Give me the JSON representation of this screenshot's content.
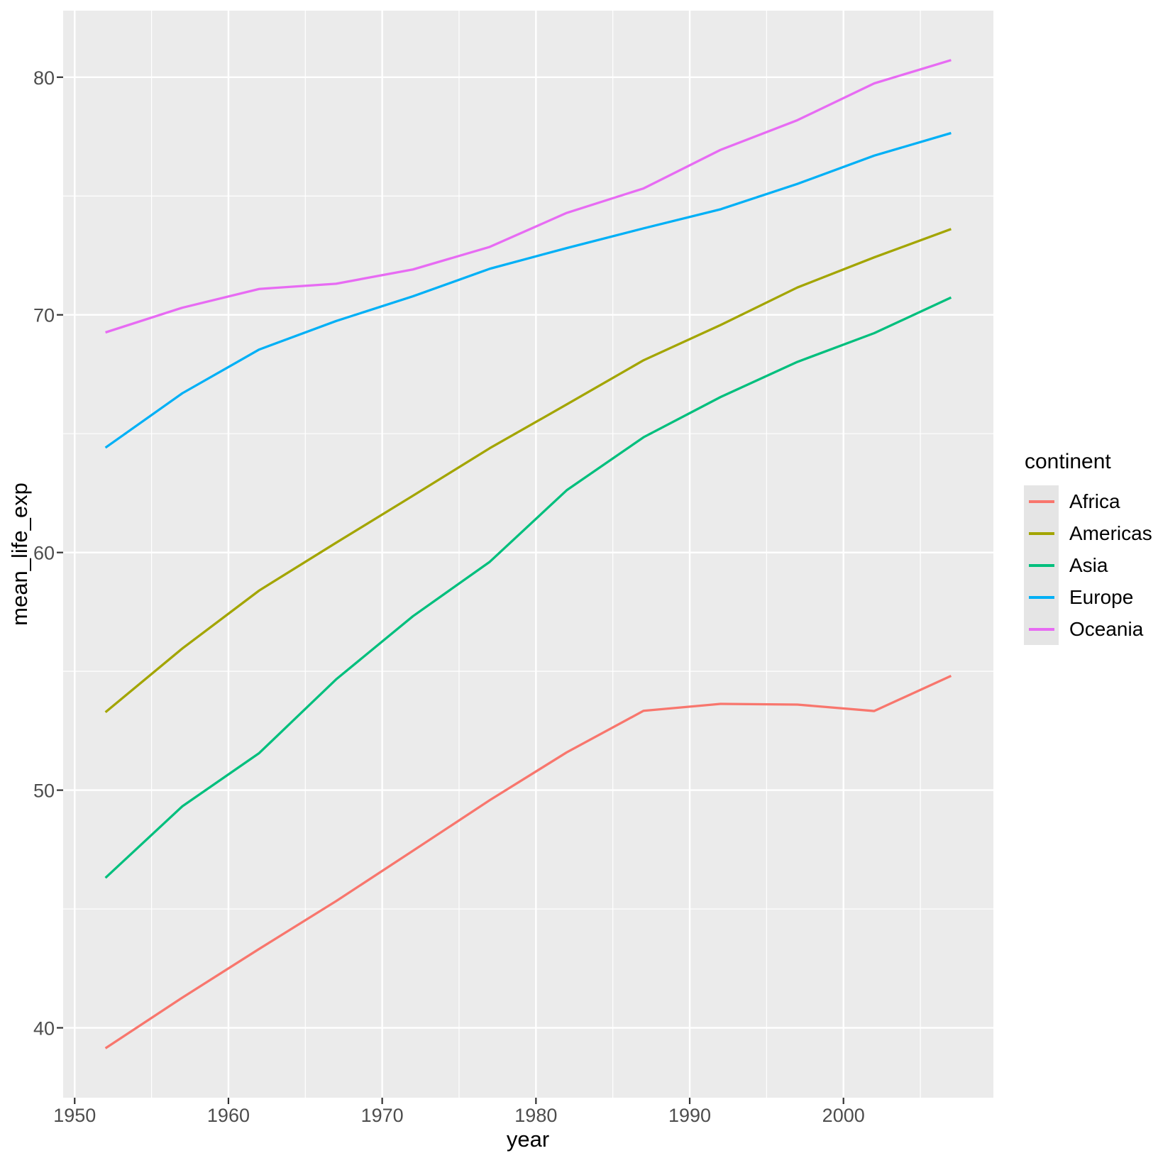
{
  "chart_data": {
    "type": "line",
    "title": "",
    "xlabel": "year",
    "ylabel": "mean_life_exp",
    "legend": {
      "title": "continent",
      "position": "right"
    },
    "x": [
      1952,
      1957,
      1962,
      1967,
      1972,
      1977,
      1982,
      1987,
      1992,
      1997,
      2002,
      2007
    ],
    "series": [
      {
        "name": "Africa",
        "color": "#F8766D",
        "values": [
          39.14,
          41.27,
          43.32,
          45.33,
          47.45,
          49.58,
          51.59,
          53.34,
          53.63,
          53.6,
          53.33,
          54.81
        ]
      },
      {
        "name": "Americas",
        "color": "#A3A500",
        "values": [
          53.28,
          55.96,
          58.4,
          60.41,
          62.39,
          64.39,
          66.23,
          68.09,
          69.57,
          71.15,
          72.42,
          73.61
        ]
      },
      {
        "name": "Asia",
        "color": "#00BF7D",
        "values": [
          46.31,
          49.32,
          51.56,
          54.66,
          57.32,
          59.61,
          62.62,
          64.85,
          66.54,
          68.02,
          69.23,
          70.73
        ]
      },
      {
        "name": "Europe",
        "color": "#00B0F6",
        "values": [
          64.41,
          66.7,
          68.54,
          69.74,
          70.78,
          71.94,
          72.81,
          73.64,
          74.44,
          75.51,
          76.7,
          77.65
        ]
      },
      {
        "name": "Oceania",
        "color": "#E76BF3",
        "values": [
          69.26,
          70.3,
          71.09,
          71.31,
          71.91,
          72.86,
          74.29,
          75.32,
          76.94,
          78.19,
          79.74,
          80.72
        ]
      }
    ],
    "xlim": [
      1949.25,
      2009.75
    ],
    "ylim": [
      37.06,
      82.8
    ],
    "x_ticks": [
      1950,
      1960,
      1970,
      1980,
      1990,
      2000
    ],
    "y_ticks": [
      40,
      50,
      60,
      70,
      80
    ],
    "x_minor_ticks": [
      1955,
      1965,
      1975,
      1985,
      1995,
      2005
    ],
    "y_minor_ticks": [
      45,
      55,
      65,
      75
    ],
    "grid": true,
    "style": {
      "panel_bg": "#EBEBEB",
      "grid_color": "#FFFFFF",
      "tick_mark_color": "#333333",
      "tick_label_color": "#4D4D4D",
      "axis_title_color": "#000000",
      "legend_key_bg": "#E5E5E5",
      "line_width": 3.3
    }
  }
}
